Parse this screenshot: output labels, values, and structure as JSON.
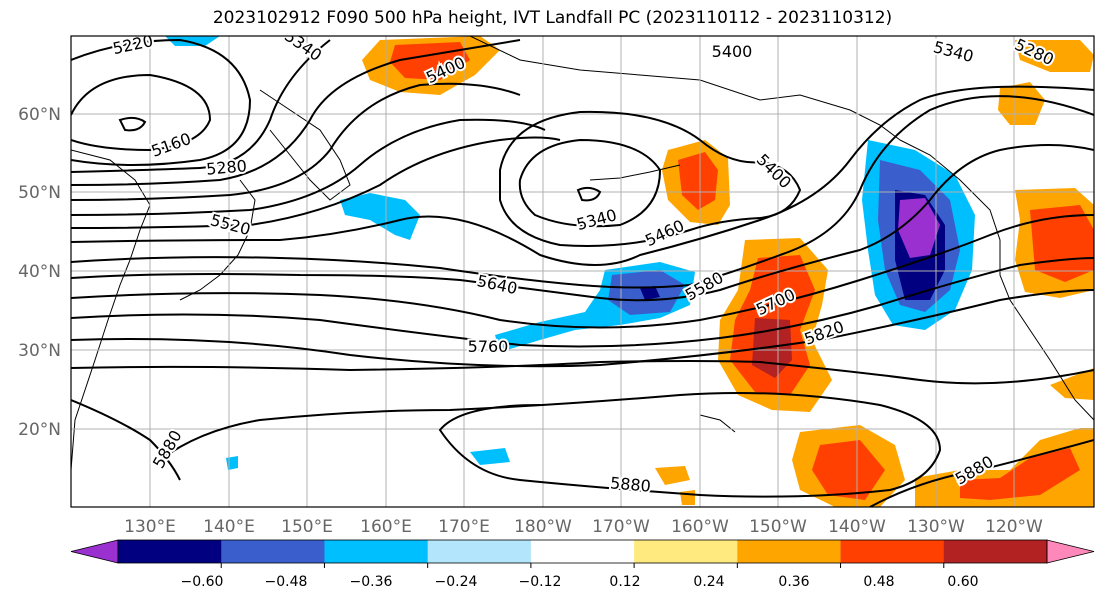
{
  "title": "2023102912 F090 500 hPa height, IVT Landfall PC (2023110112 - 2023110312)",
  "map": {
    "lat_ticks": [
      "60°N",
      "50°N",
      "40°N",
      "30°N",
      "20°N"
    ],
    "lon_ticks": [
      "130°E",
      "140°E",
      "150°E",
      "160°E",
      "170°E",
      "180°W",
      "170°W",
      "160°W",
      "150°W",
      "140°W",
      "130°W",
      "120°W"
    ]
  },
  "contour_labels": [
    {
      "name": "contour-label-5220-a",
      "text": "5220"
    },
    {
      "name": "contour-label-5340-a",
      "text": "5340"
    },
    {
      "name": "contour-label-5400-a",
      "text": "5400"
    },
    {
      "name": "contour-label-5400-b",
      "text": "5400"
    },
    {
      "name": "contour-label-5340-b",
      "text": "5340"
    },
    {
      "name": "contour-label-5280-a",
      "text": "5280"
    },
    {
      "name": "contour-label-5160",
      "text": "5160"
    },
    {
      "name": "contour-label-5280-b",
      "text": "5280"
    },
    {
      "name": "contour-label-5400-c",
      "text": "5400"
    },
    {
      "name": "contour-label-5520",
      "text": "5520"
    },
    {
      "name": "contour-label-5340-c",
      "text": "5340"
    },
    {
      "name": "contour-label-5460",
      "text": "5460"
    },
    {
      "name": "contour-label-5640",
      "text": "5640"
    },
    {
      "name": "contour-label-5580",
      "text": "5580"
    },
    {
      "name": "contour-label-5700",
      "text": "5700"
    },
    {
      "name": "contour-label-5820",
      "text": "5820"
    },
    {
      "name": "contour-label-5760",
      "text": "5760"
    },
    {
      "name": "contour-label-5880-a",
      "text": "5880"
    },
    {
      "name": "contour-label-5880-b",
      "text": "5880"
    },
    {
      "name": "contour-label-5880-c",
      "text": "5880"
    }
  ],
  "colorbar": {
    "labels": [
      "−0.60",
      "−0.48",
      "−0.36",
      "−0.24",
      "−0.12",
      "0.12",
      "0.24",
      "0.36",
      "0.48",
      "0.60"
    ],
    "colors": [
      "#9b30d0",
      "#000080",
      "#3a5fcd",
      "#00bfff",
      "#b3e5fc",
      "#ffffff",
      "#ffea80",
      "#ffa500",
      "#ff4000",
      "#b22222",
      "#ff88bb"
    ]
  }
}
